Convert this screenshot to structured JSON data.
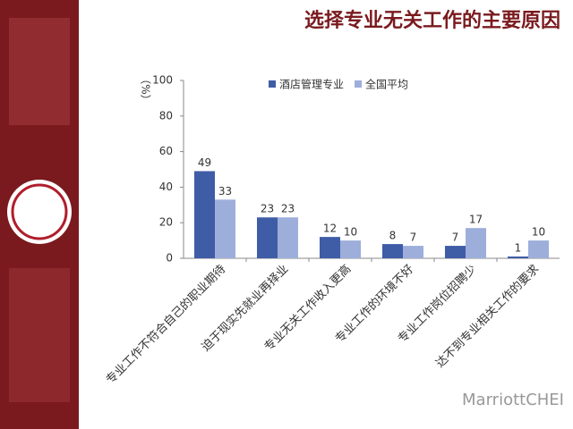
{
  "chart_data": {
    "type": "bar",
    "title": "选择专业无关工作的主要原因",
    "y_label": "（%）",
    "categories": [
      "专业工作不符合自己的职业期待",
      "迫于现实先就业再择业",
      "专业无关工作收入更高",
      "专业工作的环境不好",
      "专业工作岗位招聘少",
      "达不到专业相关工作的要求"
    ],
    "series": [
      {
        "name": "酒店管理专业",
        "color": "#3f5ca6",
        "values": [
          49,
          23,
          12,
          8,
          7,
          1
        ]
      },
      {
        "name": "全国平均",
        "color": "#9eaedb",
        "values": [
          33,
          23,
          10,
          7,
          17,
          10
        ]
      }
    ],
    "ylim": [
      0,
      100
    ],
    "yticks": [
      0,
      20,
      40,
      60,
      80,
      100
    ],
    "grid": false,
    "legend": "top",
    "watermark": "MarriottCHEI"
  }
}
